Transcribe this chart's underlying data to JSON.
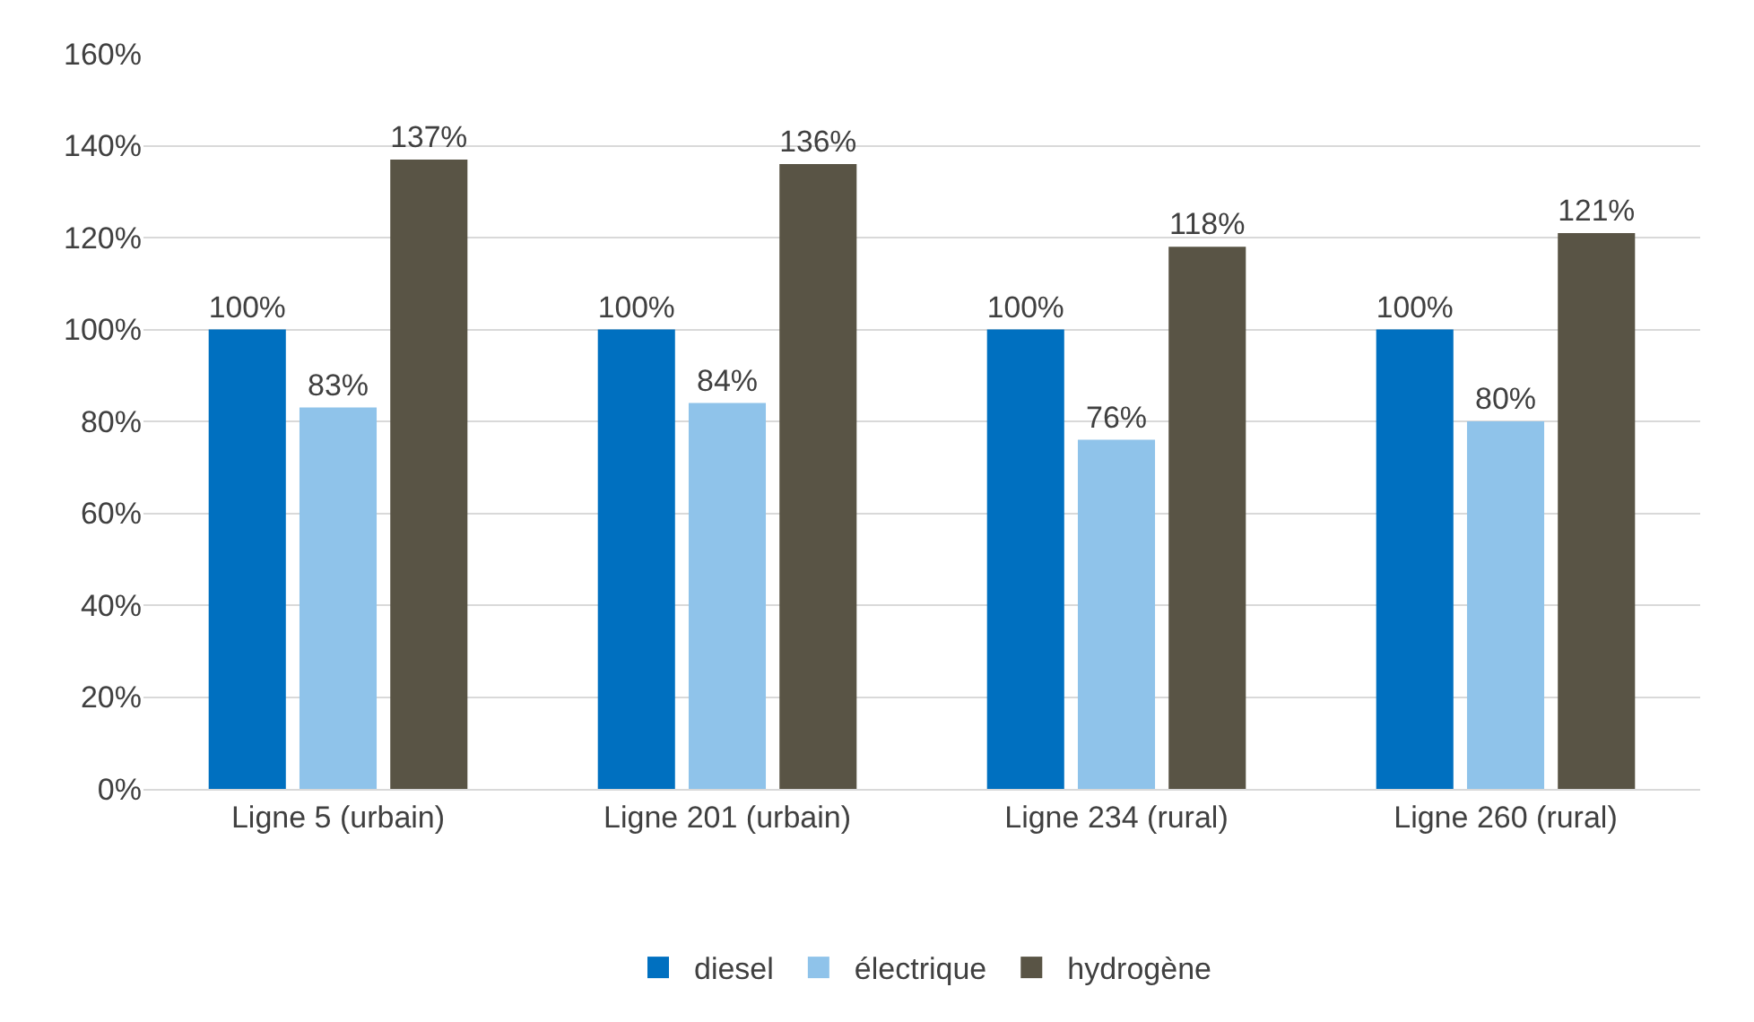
{
  "chart_data": {
    "type": "bar",
    "categories": [
      "Ligne 5 (urbain)",
      "Ligne 201 (urbain)",
      "Ligne 234 (rural)",
      "Ligne 260 (rural)"
    ],
    "series": [
      {
        "name": "diesel",
        "color": "#0070c0",
        "values": [
          100,
          100,
          100,
          100
        ],
        "value_labels": [
          "100%",
          "100%",
          "100%",
          "100%"
        ]
      },
      {
        "name": "électrique",
        "color": "#8fc3ea",
        "values": [
          83,
          84,
          76,
          80
        ],
        "value_labels": [
          "83%",
          "84%",
          "76%",
          "80%"
        ]
      },
      {
        "name": "hydrogène",
        "color": "#595445",
        "values": [
          137,
          136,
          118,
          121
        ],
        "value_labels": [
          "137%",
          "136%",
          "118%",
          "121%"
        ]
      }
    ],
    "ylim": [
      0,
      160
    ],
    "yticks": [
      {
        "value": 0,
        "label": "0%"
      },
      {
        "value": 20,
        "label": "20%"
      },
      {
        "value": 40,
        "label": "40%"
      },
      {
        "value": 60,
        "label": "60%"
      },
      {
        "value": 80,
        "label": "80%"
      },
      {
        "value": 100,
        "label": "100%"
      },
      {
        "value": 120,
        "label": "120%"
      },
      {
        "value": 140,
        "label": "140%"
      },
      {
        "value": 160,
        "label": "160%"
      }
    ],
    "grid": "y",
    "legend": "bottom"
  }
}
